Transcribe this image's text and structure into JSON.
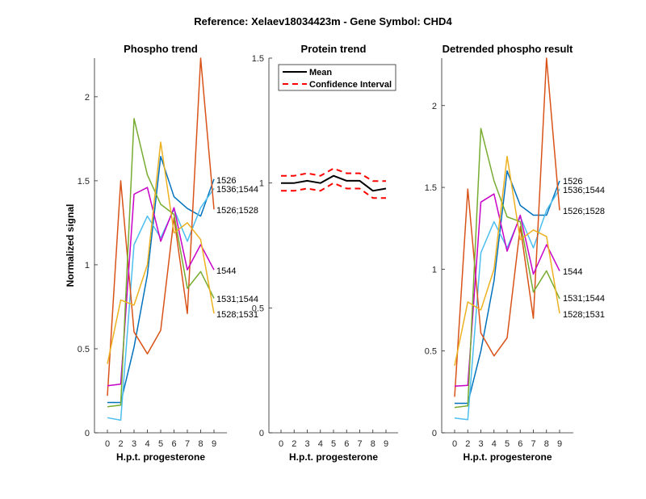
{
  "figure_title": "Reference:  Xelaev18034423m - Gene Symbol:  CHD4",
  "chart_data": [
    {
      "type": "line",
      "title": "Phospho trend",
      "xlabel": "H.p.t. progesterone",
      "ylabel": "Normalized signal",
      "categories": [
        "0",
        "2",
        "3",
        "4",
        "5",
        "6",
        "7",
        "8",
        "9"
      ],
      "ylim": [
        0,
        2.23
      ],
      "yticks": [
        "0",
        "0.5",
        "1",
        "1.5",
        "2"
      ],
      "grid": false,
      "series": [
        {
          "name": "1526",
          "color": "#0072BD",
          "values": [
            0.18,
            0.18,
            0.51,
            0.94,
            1.645,
            1.405,
            1.335,
            1.29,
            1.51
          ]
        },
        {
          "name": "1536;1544",
          "color": "#4DBEEE",
          "values": [
            0.09,
            0.075,
            1.12,
            1.29,
            1.16,
            1.33,
            1.14,
            1.34,
            1.455
          ]
        },
        {
          "name": "1526;1528",
          "color": "#D95319",
          "values": [
            0.22,
            1.5,
            0.6,
            0.47,
            0.61,
            1.28,
            0.71,
            2.23,
            1.33
          ]
        },
        {
          "name": "1544",
          "color": "#C800C8",
          "values": [
            0.28,
            0.29,
            1.42,
            1.46,
            1.14,
            1.34,
            0.97,
            1.12,
            0.97
          ]
        },
        {
          "name": "1531;1544",
          "color": "#77AC30",
          "values": [
            0.155,
            0.165,
            1.87,
            1.535,
            1.36,
            1.3,
            0.86,
            0.96,
            0.8
          ]
        },
        {
          "name": "1528;1531",
          "color": "#EDB120",
          "values": [
            0.41,
            0.79,
            0.76,
            1.0,
            1.73,
            1.19,
            1.25,
            1.15,
            0.71
          ]
        }
      ]
    },
    {
      "type": "line",
      "title": "Protein trend",
      "xlabel": "H.p.t. progesterone",
      "categories": [
        "0",
        "2",
        "3",
        "4",
        "5",
        "6",
        "7",
        "8",
        "9"
      ],
      "ylim": [
        0,
        1.5
      ],
      "yticks": [
        "0",
        "0.5",
        "1",
        "1.5"
      ],
      "grid": false,
      "legend": {
        "position": "top-left",
        "entries": [
          "Mean",
          "Confidence Interval"
        ]
      },
      "series": [
        {
          "name": "Mean",
          "color": "#000000",
          "style": "solid",
          "values": [
            1.0,
            1.0,
            1.009,
            1.0,
            1.029,
            1.009,
            1.009,
            0.969,
            0.978
          ]
        },
        {
          "name": "Confidence Interval",
          "color": "#FF0000",
          "style": "dashed",
          "values": [
            1.029,
            1.029,
            1.039,
            1.029,
            1.058,
            1.039,
            1.039,
            1.008,
            1.008
          ]
        },
        {
          "name": "Confidence Interval",
          "color": "#FF0000",
          "style": "dashed",
          "values": [
            0.969,
            0.969,
            0.978,
            0.969,
            1.0,
            0.978,
            0.978,
            0.94,
            0.94
          ]
        }
      ]
    },
    {
      "type": "line",
      "title": "Detrended phospho result",
      "xlabel": "H.p.t. progesterone",
      "categories": [
        "0",
        "2",
        "3",
        "4",
        "5",
        "6",
        "7",
        "8",
        "9"
      ],
      "ylim": [
        0,
        2.29
      ],
      "yticks": [
        "0",
        "0.5",
        "1",
        "1.5",
        "2"
      ],
      "grid": false,
      "series": [
        {
          "name": "1526",
          "color": "#0072BD",
          "values": [
            0.18,
            0.18,
            0.5,
            0.93,
            1.6,
            1.39,
            1.33,
            1.33,
            1.54
          ]
        },
        {
          "name": "1536;1544",
          "color": "#4DBEEE",
          "values": [
            0.09,
            0.08,
            1.1,
            1.29,
            1.13,
            1.32,
            1.13,
            1.36,
            1.49
          ]
        },
        {
          "name": "1526;1528",
          "color": "#D95319",
          "values": [
            0.22,
            1.49,
            0.61,
            0.47,
            0.58,
            1.26,
            0.7,
            2.29,
            1.36
          ]
        },
        {
          "name": "1544",
          "color": "#C800C8",
          "values": [
            0.285,
            0.29,
            1.41,
            1.46,
            1.11,
            1.33,
            0.97,
            1.15,
            0.99
          ]
        },
        {
          "name": "1531;1544",
          "color": "#77AC30",
          "values": [
            0.155,
            0.165,
            1.86,
            1.54,
            1.32,
            1.29,
            0.86,
            0.99,
            0.82
          ]
        },
        {
          "name": "1528;1531",
          "color": "#EDB120",
          "values": [
            0.41,
            0.8,
            0.75,
            1.0,
            1.69,
            1.18,
            1.24,
            1.2,
            0.73
          ]
        }
      ]
    }
  ]
}
